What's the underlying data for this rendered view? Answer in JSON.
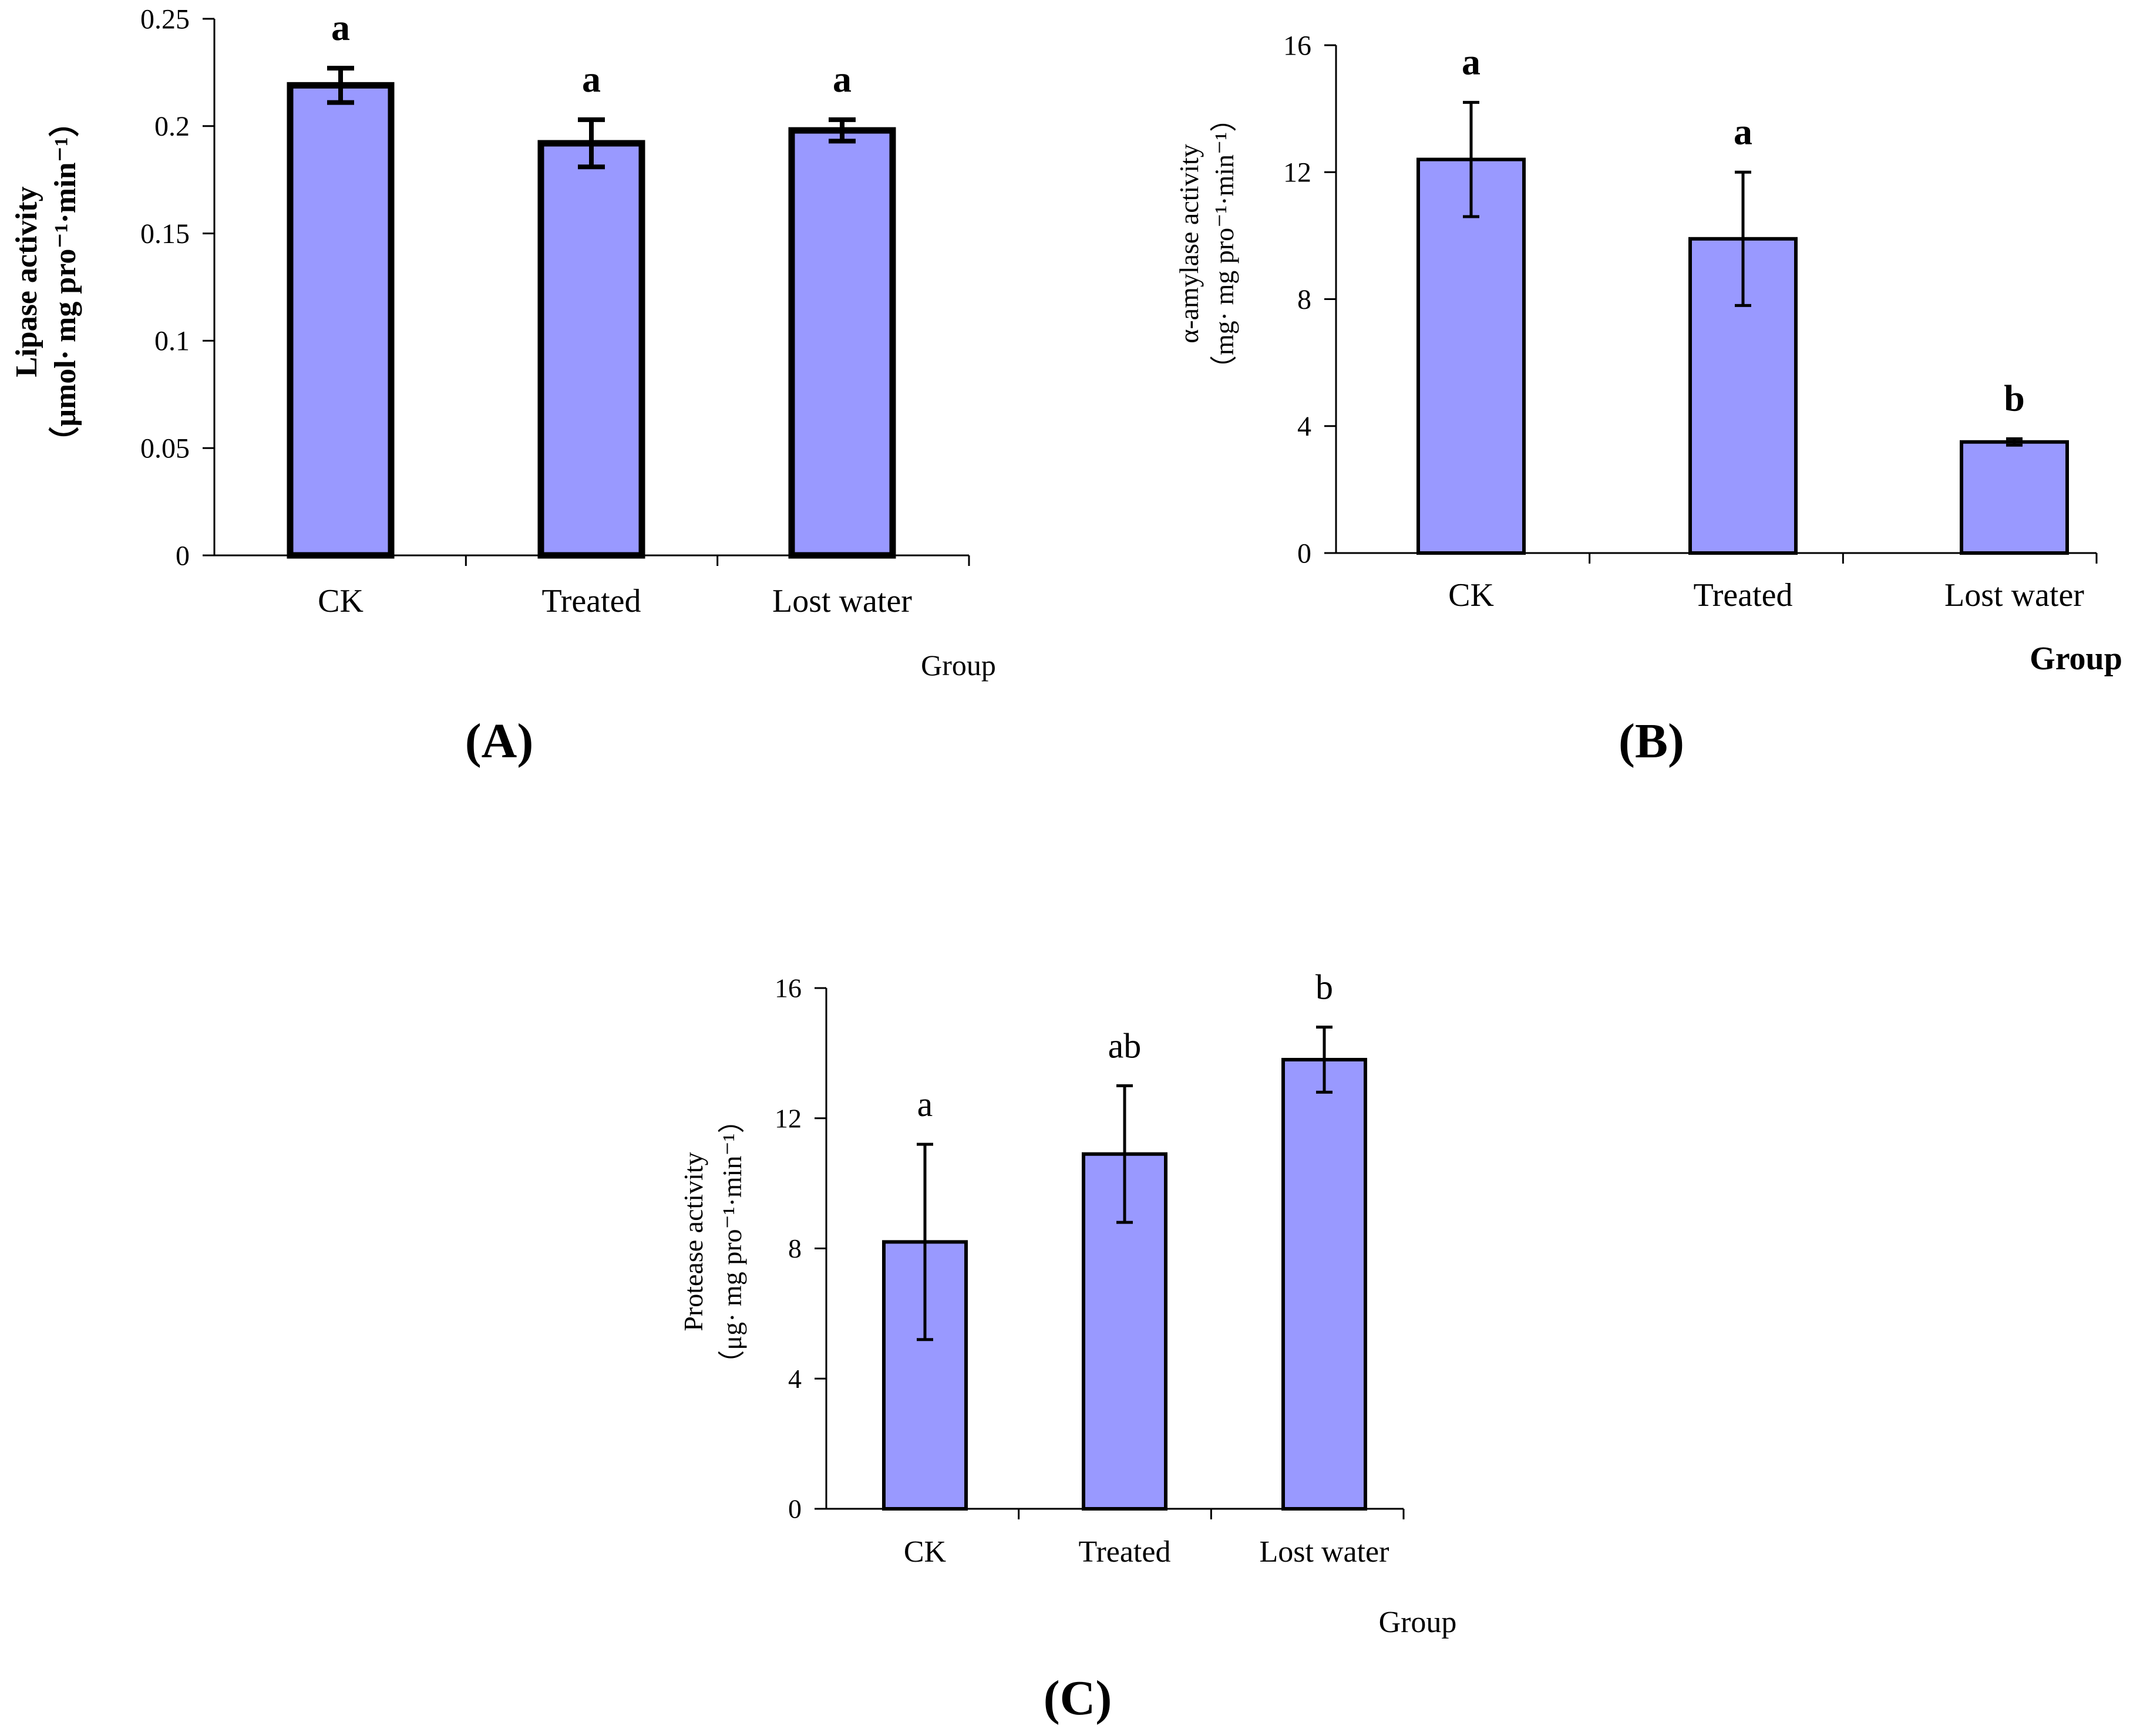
{
  "figure": {
    "colors": {
      "bar": "#9999ff",
      "stroke": "#000000"
    }
  },
  "chart_data": [
    {
      "panel": "(A)",
      "type": "bar",
      "categories": [
        "CK",
        "Treated",
        "Lost water"
      ],
      "values": [
        0.219,
        0.192,
        0.198
      ],
      "errors": [
        0.008,
        0.011,
        0.005
      ],
      "significance": [
        "a",
        "a",
        "a"
      ],
      "ylim": [
        0,
        0.25
      ],
      "yticks": [
        0,
        0.05,
        0.1,
        0.15,
        0.2,
        0.25
      ],
      "ytick_labels": [
        "0",
        "0.05",
        "0.1",
        "0.15",
        "0.2",
        "0.25"
      ],
      "ylabel": "Lipase activity",
      "ylabel_unit": "（μmol· mg pro⁻¹·min⁻¹）",
      "xlabel": "Group",
      "title": ""
    },
    {
      "panel": "(B)",
      "type": "bar",
      "categories": [
        "CK",
        "Treated",
        "Lost water"
      ],
      "values": [
        12.4,
        9.9,
        3.5
      ],
      "errors": [
        1.8,
        2.1,
        0.1
      ],
      "significance": [
        "a",
        "a",
        "b"
      ],
      "ylim": [
        0,
        16
      ],
      "yticks": [
        0,
        4,
        8,
        12,
        16
      ],
      "ytick_labels": [
        "0",
        "4",
        "8",
        "12",
        "16"
      ],
      "ylabel": "α-amylase activity",
      "ylabel_unit": "（mg· mg pro⁻¹·min⁻¹）",
      "xlabel": "Group",
      "title": ""
    },
    {
      "panel": "(C)",
      "type": "bar",
      "categories": [
        "CK",
        "Treated",
        "Lost water"
      ],
      "values": [
        8.2,
        10.9,
        13.8
      ],
      "errors": [
        3.0,
        2.1,
        1.0
      ],
      "significance": [
        "a",
        "ab",
        "b"
      ],
      "ylim": [
        0,
        16
      ],
      "yticks": [
        0,
        4,
        8,
        12,
        16
      ],
      "ytick_labels": [
        "0",
        "4",
        "8",
        "12",
        "16"
      ],
      "ylabel": "Protease activity",
      "ylabel_unit": "（μg· mg pro⁻¹·min⁻¹）",
      "xlabel": "Group",
      "title": ""
    }
  ]
}
